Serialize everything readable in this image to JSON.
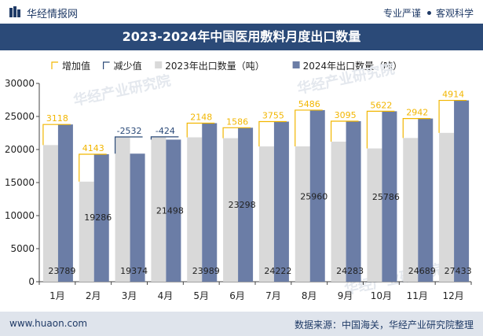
{
  "header": {
    "site_name": "华经情报网",
    "right_text_1": "专业严谨",
    "right_text_2": "客观科学"
  },
  "title": "2023-2024年中国医用敷料月度出口数量",
  "footer": {
    "left": "www.huaon.com",
    "right": "数据来源：中国海关，华经产业研究院整理"
  },
  "watermark": "华经产业研究院",
  "colors": {
    "header_bar": "#2b4a78",
    "bar_2023": "#d9d9d9",
    "bar_2024": "#6b7da6",
    "increase": "#f2b600",
    "decrease": "#2b4a78"
  },
  "chart_data": {
    "type": "bar",
    "title": "2023-2024年中国医用敷料月度出口数量",
    "categories": [
      "1月",
      "2月",
      "3月",
      "4月",
      "5月",
      "6月",
      "7月",
      "8月",
      "9月",
      "10月",
      "11月",
      "12月"
    ],
    "legend": [
      "增加值",
      "减少值",
      "2023年出口数量（吨）",
      "2024年出口数量（吨）"
    ],
    "legend_placement": "top-left",
    "series": [
      {
        "name": "2023年出口数量（吨）",
        "values": [
          20671,
          15143,
          21906,
          21922,
          21841,
          21712,
          20467,
          20474,
          21188,
          20164,
          21747,
          22519
        ]
      },
      {
        "name": "2024年出口数量（吨）",
        "values": [
          23789,
          19286,
          19374,
          21498,
          23989,
          23298,
          24222,
          25960,
          24283,
          25786,
          24689,
          27433
        ]
      }
    ],
    "change": [
      3118,
      4143,
      -2532,
      -424,
      2148,
      1586,
      3755,
      5486,
      3095,
      5622,
      2942,
      4914
    ],
    "change_labels": [
      "3118",
      "4143",
      "-2532",
      "-424",
      "2148",
      "1586",
      "3755",
      "5486",
      "3095",
      "5622",
      "2942",
      "4914"
    ],
    "value_labels_2024": [
      "23789",
      "19286",
      "19374",
      "21498",
      "23989",
      "23298",
      "24222",
      "25960",
      "24283",
      "25786",
      "24689",
      "27433"
    ],
    "ylim": [
      0,
      30000
    ],
    "yticks": [
      0,
      5000,
      10000,
      15000,
      20000,
      25000,
      30000
    ],
    "ytick_labels": [
      "0",
      "5000",
      "10000",
      "15000",
      "20000",
      "25000",
      "30000"
    ],
    "grid": false
  }
}
